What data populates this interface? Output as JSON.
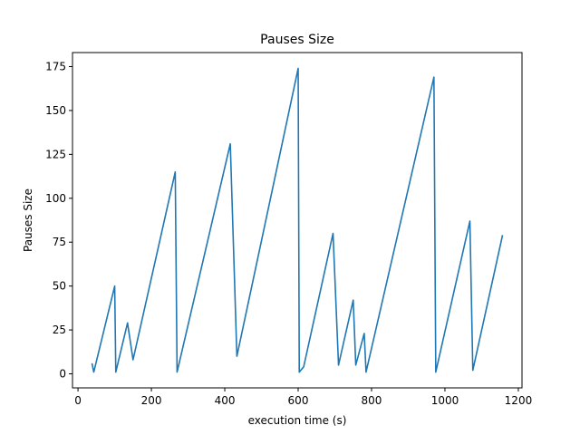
{
  "chart_data": {
    "type": "line",
    "title": "Pauses Size",
    "xlabel": "execution time (s)",
    "ylabel": "Pauses Size",
    "xlim": [
      -15,
      1210
    ],
    "ylim": [
      -8,
      183
    ],
    "xticks": [
      0,
      200,
      400,
      600,
      800,
      1000,
      1200
    ],
    "yticks": [
      0,
      25,
      50,
      75,
      100,
      125,
      150,
      175
    ],
    "grid": false,
    "series": [
      {
        "name": "Pauses Size",
        "color": "#1f77b4",
        "x": [
          38,
          43,
          100,
          103,
          135,
          150,
          265,
          270,
          415,
          433,
          600,
          603,
          615,
          695,
          710,
          750,
          757,
          780,
          785,
          970,
          975,
          1068,
          1076,
          1157
        ],
        "y": [
          6,
          1,
          50,
          1,
          29,
          8,
          115,
          1,
          131,
          10,
          174,
          1,
          4,
          80,
          5,
          42,
          5,
          23,
          1,
          169,
          1,
          87,
          2,
          79
        ]
      }
    ]
  }
}
